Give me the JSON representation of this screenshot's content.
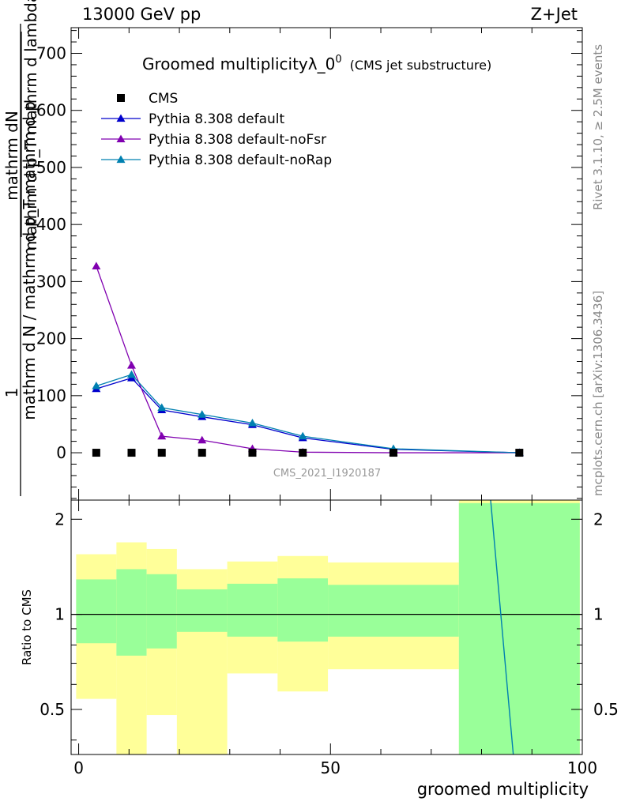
{
  "header": {
    "beam": "13000 GeV pp",
    "process": "Z+Jet"
  },
  "side": {
    "rivet": "Rivet 3.1.10, ≥ 2.5M events",
    "mcplots": "mcplots.cern.ch [arXiv:1306.3436]"
  },
  "colors": {
    "cms": "#000000",
    "default": "#0000cc",
    "noFsr": "#8000b0",
    "noRap": "#0080b0",
    "band_inner": "#99ff99",
    "band_outer": "#ffff99"
  },
  "chart_data": [
    {
      "type": "line",
      "title": "Groomed multiplicityλ_0",
      "title_sup": "0",
      "subtitle": "(CMS jet substructure)",
      "ylabel_numerator": "1",
      "ylabel_fraction_top": "mathrm dN",
      "ylabel_fraction_bottom": "mathrm d p_T mathrm d lambda",
      "ylabel_left": "mathrm d N / mathrm d p_T mathrm d p",
      "watermark": "CMS_2021_I1920187",
      "xlim": [
        -1.5,
        100
      ],
      "ylim": [
        -83,
        745
      ],
      "y_ticks": [
        0,
        100,
        200,
        300,
        400,
        500,
        600,
        700
      ],
      "y_tick_labels": [
        "0",
        "100",
        "200",
        "300",
        "400",
        "500",
        "600",
        "700"
      ],
      "legend_position": "top-left",
      "series": [
        {
          "name": "CMS",
          "marker": "square",
          "x": [
            3.5,
            10.5,
            16.5,
            24.5,
            34.5,
            44.5,
            62.5,
            87.5
          ],
          "y": [
            0,
            0,
            0,
            0,
            0,
            0,
            0,
            0
          ]
        },
        {
          "name": "Pythia 8.308 default",
          "marker": "triangle",
          "x": [
            3.5,
            10.5,
            16.5,
            24.5,
            34.5,
            44.5,
            62.5,
            87.5
          ],
          "y": [
            112,
            131,
            75,
            63,
            49,
            26,
            6,
            0
          ]
        },
        {
          "name": "Pythia 8.308 default-noFsr",
          "marker": "triangle",
          "x": [
            3.5,
            10.5,
            16.5,
            24.5,
            34.5,
            44.5,
            62.5,
            87.5
          ],
          "y": [
            327,
            153,
            29,
            22,
            7,
            1,
            0,
            0
          ]
        },
        {
          "name": "Pythia 8.308 default-noRap",
          "marker": "triangle",
          "x": [
            3.5,
            10.5,
            16.5,
            24.5,
            34.5,
            44.5,
            62.5,
            87.5
          ],
          "y": [
            117,
            137,
            79,
            67,
            52,
            29,
            7,
            0
          ]
        }
      ]
    },
    {
      "type": "area",
      "ylabel": "Ratio to CMS",
      "xlabel": "groomed multiplicity",
      "xlim": [
        -1.5,
        100
      ],
      "ylim": [
        0.36,
        2.3
      ],
      "x_ticks": [
        0,
        50,
        100
      ],
      "x_tick_labels": [
        "0",
        "50",
        "100"
      ],
      "y_ticks": [
        0.5,
        1,
        2
      ],
      "y_tick_labels": [
        "0.5",
        "1",
        "2"
      ],
      "bins": [
        {
          "lo": -0.5,
          "hi": 7.5,
          "inner": [
            0.81,
            1.29
          ],
          "outer": [
            0.54,
            1.55
          ]
        },
        {
          "lo": 7.5,
          "hi": 13.5,
          "inner": [
            0.74,
            1.39
          ],
          "outer": [
            0.3,
            1.69
          ]
        },
        {
          "lo": 13.5,
          "hi": 19.5,
          "inner": [
            0.78,
            1.34
          ],
          "outer": [
            0.48,
            1.61
          ]
        },
        {
          "lo": 19.5,
          "hi": 29.5,
          "inner": [
            0.88,
            1.2
          ],
          "outer": [
            0.3,
            1.39
          ]
        },
        {
          "lo": 29.5,
          "hi": 39.5,
          "inner": [
            0.85,
            1.25
          ],
          "outer": [
            0.65,
            1.47
          ]
        },
        {
          "lo": 39.5,
          "hi": 49.5,
          "inner": [
            0.82,
            1.3
          ],
          "outer": [
            0.57,
            1.53
          ]
        },
        {
          "lo": 49.5,
          "hi": 75.5,
          "inner": [
            0.85,
            1.24
          ],
          "outer": [
            0.67,
            1.46
          ]
        },
        {
          "lo": 75.5,
          "hi": 99.5,
          "inner": [
            0.3,
            2.25
          ],
          "outer": [
            0.3,
            2.4
          ]
        }
      ],
      "reference": 1,
      "series": [
        {
          "name": "Pythia 8.308 default-noRap",
          "x": [
            81.6,
            86.3
          ],
          "y": [
            2.5,
            0.36
          ]
        }
      ]
    }
  ]
}
